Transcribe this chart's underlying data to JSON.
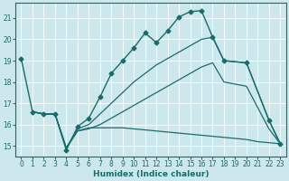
{
  "xlabel": "Humidex (Indice chaleur)",
  "xlim": [
    -0.5,
    23.5
  ],
  "ylim": [
    14.5,
    21.7
  ],
  "yticks": [
    15,
    16,
    17,
    18,
    19,
    20,
    21
  ],
  "xticks": [
    0,
    1,
    2,
    3,
    4,
    5,
    6,
    7,
    8,
    9,
    10,
    11,
    12,
    13,
    14,
    15,
    16,
    17,
    18,
    19,
    20,
    21,
    22,
    23
  ],
  "bg_color": "#cce8ec",
  "line_color": "#1a6b6b",
  "grid_color": "#ffffff",
  "series": {
    "line_main": {
      "x": [
        0,
        1,
        2,
        3,
        4,
        5,
        6,
        7,
        8,
        9,
        10,
        11,
        12,
        13,
        14,
        15,
        16,
        17,
        18,
        20,
        22,
        23
      ],
      "y": [
        19.1,
        16.6,
        16.5,
        16.5,
        14.8,
        15.9,
        16.3,
        17.3,
        18.4,
        19.0,
        19.6,
        20.3,
        19.85,
        20.4,
        21.05,
        21.3,
        21.35,
        20.1,
        19.0,
        18.9,
        16.2,
        15.1
      ],
      "marker": "D",
      "markersize": 2.5,
      "linewidth": 1.0
    },
    "line_upper": {
      "x": [
        1,
        2,
        3,
        4,
        5,
        6,
        7,
        8,
        9,
        10,
        11,
        12,
        13,
        14,
        15,
        16,
        17,
        18,
        20,
        22,
        23
      ],
      "y": [
        16.6,
        16.5,
        16.5,
        14.9,
        15.8,
        16.0,
        16.5,
        17.0,
        17.5,
        18.0,
        18.4,
        18.8,
        19.1,
        19.4,
        19.7,
        20.0,
        20.1,
        19.0,
        18.9,
        16.2,
        15.1
      ],
      "marker": null,
      "linewidth": 0.9
    },
    "line_mid": {
      "x": [
        1,
        2,
        3,
        4,
        5,
        6,
        7,
        8,
        9,
        10,
        11,
        12,
        13,
        14,
        15,
        16,
        17,
        18,
        20,
        22,
        23
      ],
      "y": [
        16.6,
        16.5,
        16.5,
        14.9,
        15.7,
        15.8,
        16.0,
        16.3,
        16.6,
        16.9,
        17.2,
        17.5,
        17.8,
        18.1,
        18.4,
        18.7,
        18.9,
        18.0,
        17.8,
        15.8,
        15.1
      ],
      "marker": null,
      "linewidth": 0.9
    },
    "line_bottom": {
      "x": [
        1,
        2,
        3,
        4,
        5,
        6,
        7,
        8,
        9,
        10,
        11,
        12,
        13,
        14,
        15,
        16,
        17,
        18,
        19,
        20,
        21,
        22,
        23
      ],
      "y": [
        16.6,
        16.5,
        16.5,
        14.9,
        15.7,
        15.85,
        15.85,
        15.85,
        15.85,
        15.8,
        15.75,
        15.7,
        15.65,
        15.6,
        15.55,
        15.5,
        15.45,
        15.4,
        15.35,
        15.3,
        15.2,
        15.15,
        15.1
      ],
      "marker": null,
      "linewidth": 0.9
    }
  }
}
